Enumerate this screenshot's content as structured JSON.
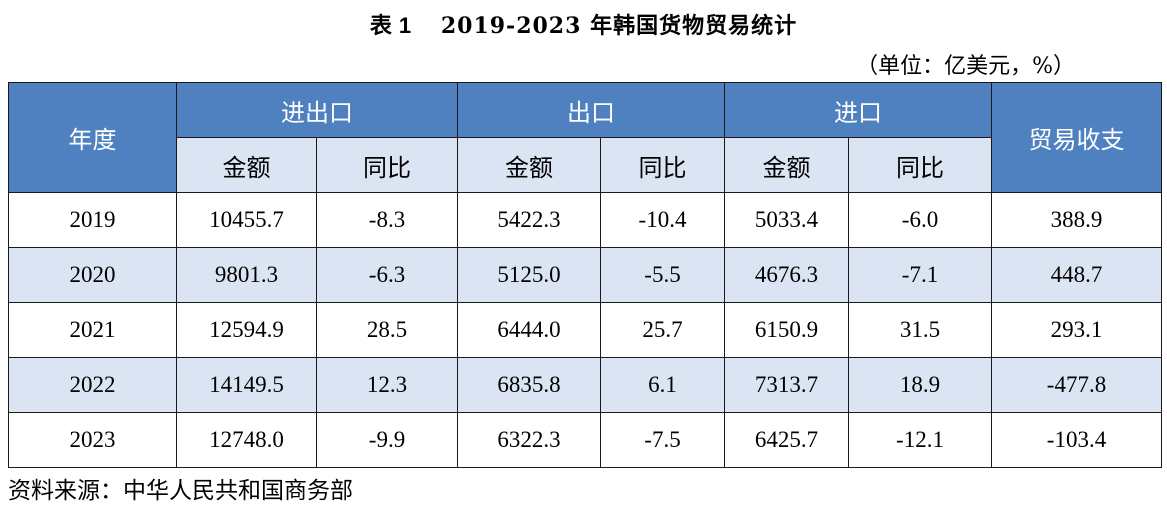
{
  "title": {
    "prefix": "表",
    "number": "1",
    "text": "2019-2023 年韩国货物贸易统计"
  },
  "unit": "（单位：亿美元，%）",
  "headers": {
    "year": "年度",
    "total": "进出口",
    "export": "出口",
    "import": "进口",
    "balance": "贸易收支",
    "amount": "金额",
    "yoy": "同比"
  },
  "rows": [
    {
      "year": "2019",
      "total_amt": "10455.7",
      "total_yoy": "-8.3",
      "exp_amt": "5422.3",
      "exp_yoy": "-10.4",
      "imp_amt": "5033.4",
      "imp_yoy": "-6.0",
      "balance": "388.9"
    },
    {
      "year": "2020",
      "total_amt": "9801.3",
      "total_yoy": "-6.3",
      "exp_amt": "5125.0",
      "exp_yoy": "-5.5",
      "imp_amt": "4676.3",
      "imp_yoy": "-7.1",
      "balance": "448.7"
    },
    {
      "year": "2021",
      "total_amt": "12594.9",
      "total_yoy": "28.5",
      "exp_amt": "6444.0",
      "exp_yoy": "25.7",
      "imp_amt": "6150.9",
      "imp_yoy": "31.5",
      "balance": "293.1"
    },
    {
      "year": "2022",
      "total_amt": "14149.5",
      "total_yoy": "12.3",
      "exp_amt": "6835.8",
      "exp_yoy": "6.1",
      "imp_amt": "7313.7",
      "imp_yoy": "18.9",
      "balance": "-477.8"
    },
    {
      "year": "2023",
      "total_amt": "12748.0",
      "total_yoy": "-9.9",
      "exp_amt": "6322.3",
      "exp_yoy": "-7.5",
      "imp_amt": "6425.7",
      "imp_yoy": "-12.1",
      "balance": "-103.4"
    }
  ],
  "source": "资料来源：中华人民共和国商务部",
  "colors": {
    "header_bg": "#4f80bf",
    "subheader_bg": "#dbe4f2",
    "alt_row_bg": "#dbe4f2"
  }
}
